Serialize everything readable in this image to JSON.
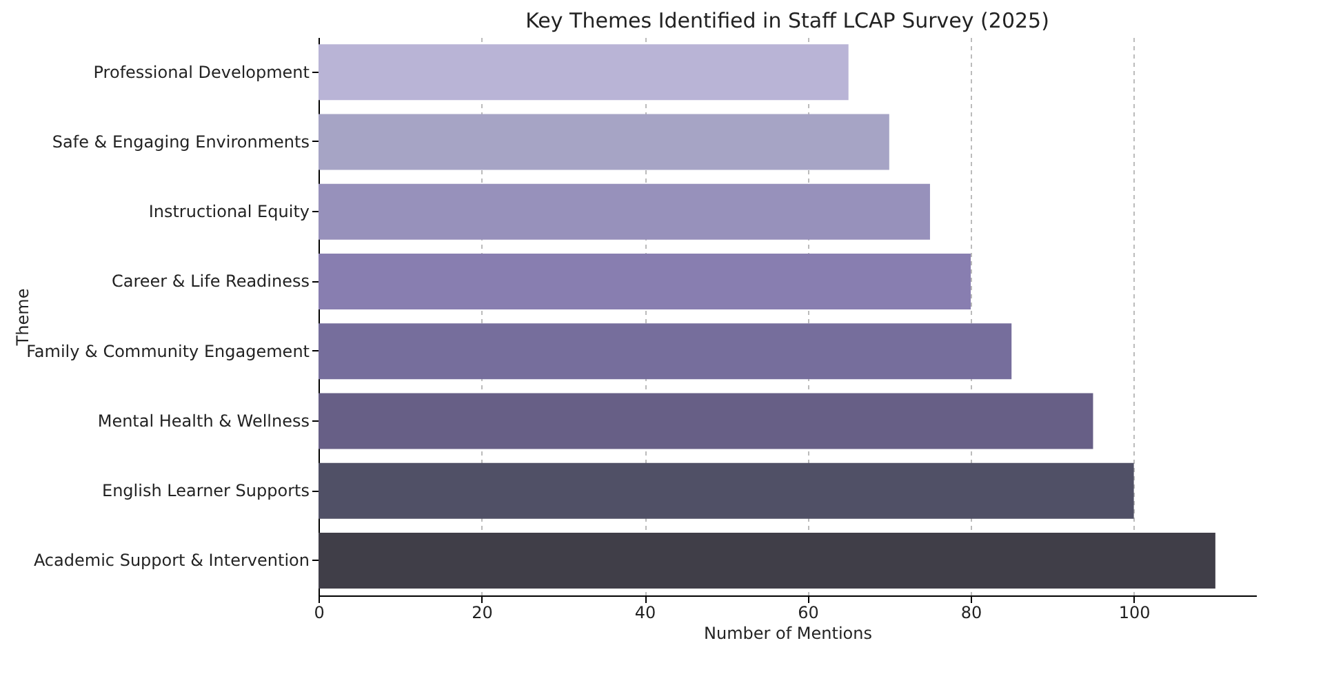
{
  "chart_data": {
    "type": "bar",
    "orientation": "horizontal",
    "title": "Key Themes Identified in Staff LCAP Survey (2025)",
    "xlabel": "Number of Mentions",
    "ylabel": "Theme",
    "categories": [
      "Professional Development",
      "Safe & Engaging Environments",
      "Instructional Equity",
      "Career & Life Readiness",
      "Family & Community Engagement",
      "Mental Health & Wellness",
      "English Learner Supports",
      "Academic Support & Intervention"
    ],
    "values": [
      65,
      70,
      75,
      80,
      85,
      95,
      100,
      110
    ],
    "colors": [
      "#b9b4d6",
      "#a6a4c5",
      "#9791bb",
      "#887eb0",
      "#766e9c",
      "#675f86",
      "#505066",
      "#403e48"
    ],
    "xlim": [
      0,
      115
    ],
    "xticks": [
      0,
      20,
      40,
      60,
      80,
      100
    ],
    "grid": "x"
  }
}
